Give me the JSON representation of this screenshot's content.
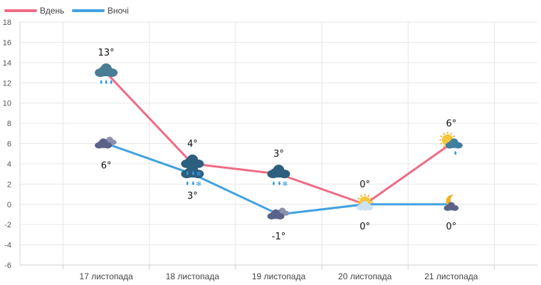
{
  "chart_data": {
    "type": "line",
    "title": "",
    "xlabel": "",
    "ylabel": "",
    "ylim": [
      -6,
      18
    ],
    "ytick_step": 2,
    "grid": true,
    "legend_position": "top-left",
    "categories": [
      "17 листопада",
      "18 листопада",
      "19 листопада",
      "20 листопада",
      "21 листопада"
    ],
    "series": [
      {
        "name": "Вдень",
        "color": "#ef6b86",
        "values": [
          13,
          4,
          3,
          0,
          6
        ],
        "labels": [
          "13°",
          "4°",
          "3°",
          "0°",
          "6°"
        ],
        "icons": [
          "rain-cloud-icon",
          "rain-snow-cloud-icon",
          "rain-snow-cloud-icon",
          "sun-cloud-icon",
          "sun-cloud-rain-icon"
        ]
      },
      {
        "name": "Вночі",
        "color": "#42a1e0",
        "values": [
          6,
          3,
          -1,
          0,
          0
        ],
        "labels": [
          "6°",
          "3°",
          "-1°",
          "0°",
          "0°"
        ],
        "icons": [
          "cloudy-icon",
          "rain-snow-cloud-icon",
          "cloudy-icon",
          "sun-cloud-icon",
          "moon-cloud-icon"
        ]
      }
    ]
  }
}
